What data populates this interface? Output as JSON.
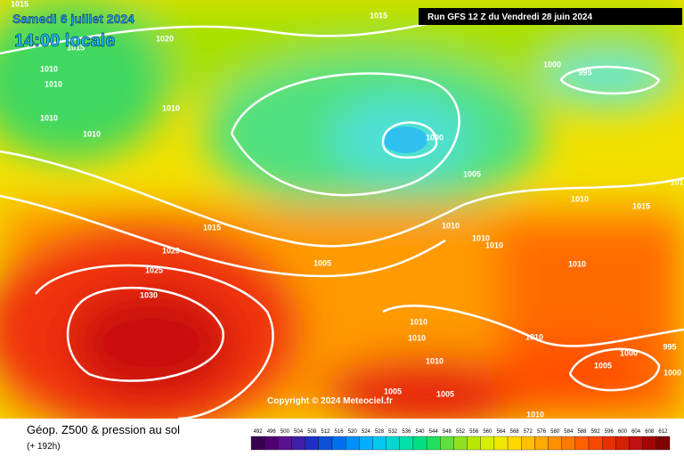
{
  "header": {
    "date": "Samedi 6 juillet 2024",
    "time": "14:00 locale",
    "run": "Run GFS 12 Z du Vendredi 28 juin 2024"
  },
  "copyright": "Copyright © 2024 Meteociel.fr",
  "footer": {
    "title": "Géop. Z500 & pression au sol",
    "lead": "(+ 192h)"
  },
  "isobar_labels": [
    "1015",
    "1015",
    "1020",
    "1015",
    "1010",
    "1010",
    "1010",
    "1010",
    "1010",
    "1000",
    "995",
    "1000",
    "1005",
    "1015",
    "1010",
    "1010",
    "1010",
    "1010",
    "1015",
    "1020",
    "1005",
    "1025",
    "1030",
    "1010",
    "1010",
    "1010",
    "1010",
    "1010",
    "995",
    "1000",
    "1005",
    "1000",
    "1005",
    "1005",
    "1010",
    "101"
  ],
  "colorbar_labels": [
    "492",
    "496",
    "500",
    "504",
    "508",
    "512",
    "516",
    "520",
    "524",
    "528",
    "532",
    "536",
    "540",
    "544",
    "548",
    "552",
    "556",
    "560",
    "564",
    "568",
    "572",
    "576",
    "580",
    "584",
    "588",
    "592",
    "596",
    "600",
    "604",
    "608",
    "612"
  ]
}
